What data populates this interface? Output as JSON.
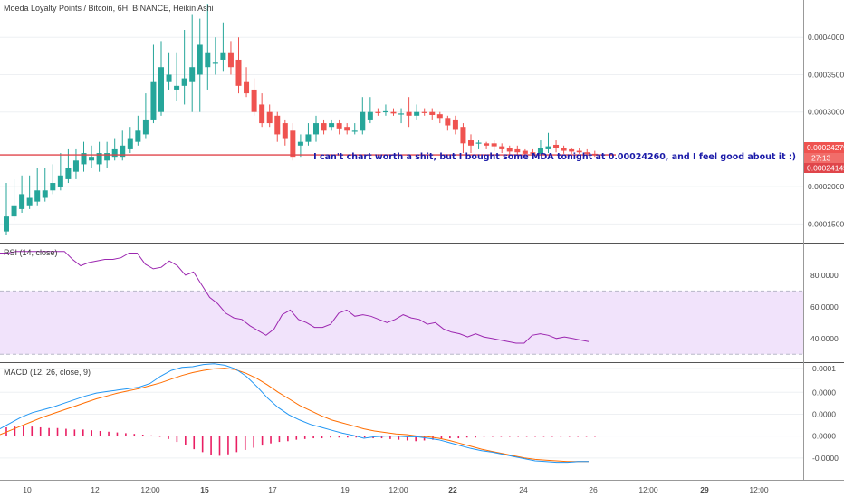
{
  "header": {
    "title": "Moeda Loyalty Points / Bitcoin, 6H, BINANCE, Heikin Ashi"
  },
  "annotation": "I can't chart worth a shit, but I bought some MDA tonight at 0.00024260, and I feel good about it :)",
  "price_tags": {
    "last": "0.00024279",
    "countdown": "27:13",
    "line": "0.00024145"
  },
  "colors": {
    "up": "#26a69a",
    "down": "#ef5350",
    "line": "#e0454a",
    "rsi": "#9c27b0",
    "rsi_band": "#f1e3fb",
    "macd": "#2196f3",
    "signal": "#ff6d00",
    "hist": "#e91e63"
  },
  "chart_data": [
    {
      "type": "candlestick",
      "title": "Moeda Loyalty Points / Bitcoin, 6H, BINANCE, Heikin Ashi",
      "ylim": [
        0.000125,
        0.00045
      ],
      "y_ticks": [
        "0.00015000",
        "0.00020000",
        "0.00030000",
        "0.00035000",
        "0.00040000"
      ],
      "x_ticks": [
        "10",
        "12",
        "12:00",
        "15",
        "17",
        "19",
        "12:00",
        "22",
        "24",
        "26",
        "12:00",
        "29",
        "12:00"
      ],
      "horizontal_line": 0.0002426,
      "candles": [
        [
          0.00014,
          0.00016,
          0.000205,
          0.000135
        ],
        [
          0.00016,
          0.000175,
          0.00021,
          0.000155
        ],
        [
          0.00017,
          0.00019,
          0.000215,
          0.000165
        ],
        [
          0.000175,
          0.000185,
          0.000215,
          0.00017
        ],
        [
          0.00018,
          0.000195,
          0.000225,
          0.000175
        ],
        [
          0.000185,
          0.000195,
          0.000225,
          0.00018
        ],
        [
          0.000195,
          0.000205,
          0.00023,
          0.00019
        ],
        [
          0.0002,
          0.000215,
          0.000245,
          0.000195
        ],
        [
          0.00021,
          0.000225,
          0.00025,
          0.000205
        ],
        [
          0.00022,
          0.000235,
          0.00025,
          0.00021
        ],
        [
          0.00023,
          0.000245,
          0.00026,
          0.00022
        ],
        [
          0.000235,
          0.00024,
          0.000255,
          0.000225
        ],
        [
          0.00023,
          0.000245,
          0.00026,
          0.00022
        ],
        [
          0.000235,
          0.000245,
          0.00026,
          0.000225
        ],
        [
          0.00024,
          0.00025,
          0.000265,
          0.000235
        ],
        [
          0.00024,
          0.000255,
          0.000275,
          0.000235
        ],
        [
          0.00025,
          0.000265,
          0.00028,
          0.000245
        ],
        [
          0.00026,
          0.000275,
          0.000295,
          0.000255
        ],
        [
          0.00027,
          0.00029,
          0.000325,
          0.000265
        ],
        [
          0.00029,
          0.00034,
          0.00039,
          0.000285
        ],
        [
          0.0003,
          0.00036,
          0.000395,
          0.000295
        ],
        [
          0.00034,
          0.00035,
          0.00038,
          0.00033
        ],
        [
          0.00033,
          0.000335,
          0.00038,
          0.000315
        ],
        [
          0.000335,
          0.000345,
          0.00041,
          0.00031
        ],
        [
          0.00034,
          0.00036,
          0.00043,
          0.0003
        ],
        [
          0.00035,
          0.00039,
          0.000425,
          0.0003
        ],
        [
          0.00036,
          0.00038,
          0.000445,
          0.00033
        ],
        [
          0.000365,
          0.000366,
          0.0004,
          0.00035
        ],
        [
          0.00037,
          0.00038,
          0.00042,
          0.000355
        ],
        [
          0.00038,
          0.00036,
          0.000395,
          0.00035
        ],
        [
          0.00037,
          0.000335,
          0.0004,
          0.000325
        ],
        [
          0.00034,
          0.000325,
          0.00036,
          0.00032
        ],
        [
          0.00033,
          0.0003,
          0.000345,
          0.000295
        ],
        [
          0.00031,
          0.000285,
          0.000325,
          0.00028
        ],
        [
          0.0003,
          0.000285,
          0.00031,
          0.00028
        ],
        [
          0.000295,
          0.00027,
          0.0003,
          0.00026
        ],
        [
          0.000285,
          0.000265,
          0.00029,
          0.000255
        ],
        [
          0.000275,
          0.00024,
          0.000285,
          0.000235
        ],
        [
          0.000255,
          0.00026,
          0.00027,
          0.00024
        ],
        [
          0.00026,
          0.00027,
          0.000285,
          0.000255
        ],
        [
          0.00027,
          0.000285,
          0.000295,
          0.00026
        ],
        [
          0.000285,
          0.000275,
          0.00029,
          0.00027
        ],
        [
          0.00028,
          0.000285,
          0.00029,
          0.000275
        ],
        [
          0.000285,
          0.000278,
          0.00029,
          0.00027
        ],
        [
          0.00028,
          0.000275,
          0.000285,
          0.00027
        ],
        [
          0.000275,
          0.000275,
          0.000285,
          0.00027
        ],
        [
          0.000275,
          0.0003,
          0.00032,
          0.00027
        ],
        [
          0.00029,
          0.0003,
          0.00032,
          0.000285
        ],
        [
          0.0003,
          0.000299,
          0.000305,
          0.000295
        ],
        [
          0.0003,
          0.000301,
          0.00031,
          0.000295
        ],
        [
          0.0003,
          0.000298,
          0.000305,
          0.000295
        ],
        [
          0.000298,
          0.000298,
          0.000305,
          0.000285
        ],
        [
          0.0003,
          0.000295,
          0.00032,
          0.00028
        ],
        [
          0.000295,
          0.0003,
          0.00031,
          0.00029
        ],
        [
          0.0003,
          0.000299,
          0.000305,
          0.000295
        ],
        [
          0.0003,
          0.000296,
          0.000305,
          0.00029
        ],
        [
          0.000297,
          0.000292,
          0.0003,
          0.000285
        ],
        [
          0.000292,
          0.000282,
          0.000295,
          0.000275
        ],
        [
          0.00029,
          0.000276,
          0.000295,
          0.00027
        ],
        [
          0.00028,
          0.000258,
          0.000285,
          0.000245
        ],
        [
          0.000262,
          0.000255,
          0.00027,
          0.000245
        ],
        [
          0.000258,
          0.000259,
          0.000262,
          0.00025
        ],
        [
          0.000258,
          0.000255,
          0.00026,
          0.00025
        ],
        [
          0.000258,
          0.000254,
          0.000262,
          0.000248
        ],
        [
          0.000254,
          0.00025,
          0.000258,
          0.000245
        ],
        [
          0.000252,
          0.000247,
          0.000255,
          0.000243
        ],
        [
          0.00025,
          0.000246,
          0.000255,
          0.000243
        ],
        [
          0.000248,
          0.000244,
          0.00025,
          0.000241
        ],
        [
          0.000246,
          0.000244,
          0.00025,
          0.000242
        ],
        [
          0.000244,
          0.000252,
          0.000262,
          0.000242
        ],
        [
          0.00025,
          0.000254,
          0.000272,
          0.000245
        ],
        [
          0.000256,
          0.000252,
          0.000262,
          0.000246
        ],
        [
          0.000252,
          0.000248,
          0.000255,
          0.000244
        ],
        [
          0.00025,
          0.000247,
          0.000252,
          0.000244
        ],
        [
          0.000248,
          0.000246,
          0.000252,
          0.000244
        ],
        [
          0.000246,
          0.000244,
          0.00025,
          0.000242
        ],
        [
          0.000244,
          0.000242,
          0.000248,
          0.00024
        ]
      ]
    },
    {
      "type": "line",
      "title": "RSI (14, close)",
      "ylim": [
        25,
        100
      ],
      "y_ticks": [
        "80.0000",
        "60.0000",
        "40.0000"
      ],
      "band": [
        30,
        70
      ],
      "values": [
        94,
        94,
        95,
        95,
        95,
        95,
        95,
        95,
        95,
        90,
        86,
        88,
        89,
        90,
        90,
        91,
        94,
        94,
        87,
        84,
        85,
        89,
        86,
        80,
        82,
        74,
        66,
        62,
        56,
        53,
        52,
        48,
        45,
        42,
        46,
        55,
        58,
        52,
        50,
        47,
        47,
        49,
        56,
        58,
        54,
        55,
        54,
        52,
        50,
        52,
        55,
        53,
        52,
        49,
        50,
        46,
        44,
        43,
        41,
        43,
        41,
        40,
        39,
        38,
        37,
        37,
        42,
        43,
        42,
        40,
        41,
        40,
        39,
        38
      ]
    },
    {
      "type": "line",
      "title": "MACD (12, 26, close, 9)",
      "ylim": [
        -6e-05,
        0.0001
      ],
      "y_ticks": [
        "0.0001",
        "0.0000",
        "0.0000",
        "0.0000",
        "-0.0000"
      ],
      "series": [
        {
          "values": [
            1e-05,
            1.8e-05,
            2.6e-05,
            3.2e-05,
            3.6e-05,
            4e-05,
            4.5e-05,
            5e-05,
            5.5e-05,
            5.9e-05,
            6.1e-05,
            6.3e-05,
            6.5e-05,
            6.7e-05,
            7.2e-05,
            8.2e-05,
            9e-05,
            9.4e-05,
            9.5e-05,
            9.8e-05,
            9.9e-05,
            9.7e-05,
            9.2e-05,
            8.2e-05,
            6.8e-05,
            5.2e-05,
            3.9e-05,
            2.9e-05,
            2.2e-05,
            1.6e-05,
            1.2e-05,
            8e-06,
            4e-06,
            1e-06,
            -3e-06,
            -1e-06,
            0.0,
            0.0,
            -1e-06,
            -1e-06,
            -3e-06,
            -5e-06,
            -9e-06,
            -1.3e-05,
            -1.7e-05,
            -2e-05,
            -2.2e-05,
            -2.5e-05,
            -2.8e-05,
            -3.1e-05,
            -3.4e-05,
            -3.5e-05,
            -3.6e-05,
            -3.6e-05,
            -3.5e-05,
            -3.5e-05
          ]
        },
        {
          "values": [
            2e-06,
            8e-06,
            1.4e-05,
            2e-05,
            2.6e-05,
            3.1e-05,
            3.6e-05,
            4.1e-05,
            4.6e-05,
            5.1e-05,
            5.5e-05,
            5.9e-05,
            6.2e-05,
            6.5e-05,
            6.9e-05,
            7.3e-05,
            7.8e-05,
            8.3e-05,
            8.7e-05,
            9e-05,
            9.2e-05,
            9.3e-05,
            9.1e-05,
            8.6e-05,
            7.9e-05,
            7e-05,
            6e-05,
            5.1e-05,
            4.2e-05,
            3.5e-05,
            2.8e-05,
            2.2e-05,
            1.8e-05,
            1.4e-05,
            1e-05,
            7e-06,
            5e-06,
            3e-06,
            2e-06,
            0.0,
            -1e-06,
            -3e-06,
            -6e-06,
            -1e-05,
            -1.4e-05,
            -1.8e-05,
            -2.1e-05,
            -2.4e-05,
            -2.7e-05,
            -3e-05,
            -3.2e-05,
            -3.3e-05,
            -3.4e-05,
            -3.5e-05,
            -3.5e-05,
            -3.5e-05
          ]
        }
      ],
      "histogram": [
        1.2e-05,
        1.3e-05,
        1.4e-05,
        1.3e-05,
        1.2e-05,
        1.1e-05,
        1.1e-05,
        1e-05,
        9e-06,
        9e-06,
        8e-06,
        7e-06,
        6e-06,
        5e-06,
        4e-06,
        3e-06,
        2e-06,
        1e-06,
        -1e-06,
        -4e-06,
        -8e-06,
        -1.2e-05,
        -1.8e-05,
        -2.2e-05,
        -2.6e-05,
        -2.7e-05,
        -2.5e-05,
        -2.2e-05,
        -1.9e-05,
        -1.6e-05,
        -1.3e-05,
        -1e-05,
        -8e-06,
        -7e-06,
        -5e-06,
        -4e-06,
        -3e-06,
        -3e-06,
        -2e-06,
        -2e-06,
        -2e-06,
        -2e-06,
        -2e-06,
        -3e-06,
        -3e-06,
        -4e-06,
        -5e-06,
        -6e-06,
        -7e-06,
        -6e-06,
        -5e-06,
        -4e-06,
        -3e-06,
        -3e-06,
        -2e-06,
        -2e-06,
        -1e-06,
        -1e-06,
        -1e-06,
        -1e-06,
        -1e-06,
        -1e-06,
        -1e-06,
        -1e-06,
        -1e-06,
        -1e-06,
        -1e-06,
        -1e-06,
        -1e-06,
        -1e-06
      ]
    }
  ]
}
